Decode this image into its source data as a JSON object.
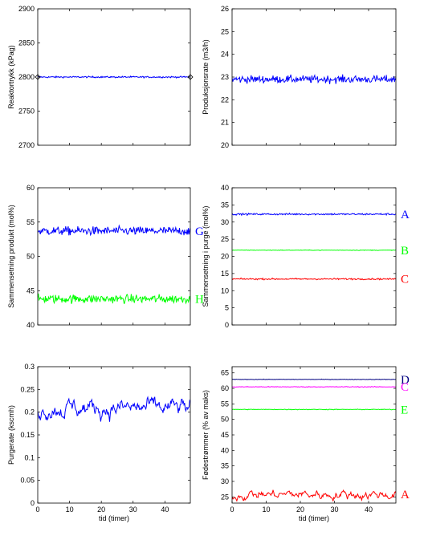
{
  "colors": {
    "blue": "#0000ff",
    "green": "#00ff00",
    "red": "#ff0000",
    "magenta": "#ff00ff",
    "navy": "#000080",
    "black": "#000000"
  },
  "chart_data": [
    {
      "type": "line",
      "title": "",
      "xlabel": "",
      "ylabel": "Reaktortrykk (kPag)",
      "xlim": [
        0,
        48
      ],
      "ylim": [
        2700,
        2900
      ],
      "xticks": [
        0,
        10,
        20,
        30,
        40
      ],
      "yticks": [
        2700,
        2750,
        2800,
        2850,
        2900
      ],
      "show_xtick_labels": false,
      "grid": false,
      "legend": "none",
      "series": [
        {
          "label": "",
          "color": "#0000ff",
          "base": 2800,
          "noise": 0.8,
          "kind": "white",
          "markers_at_ends": true
        }
      ]
    },
    {
      "type": "line",
      "title": "",
      "xlabel": "",
      "ylabel": "Produksjonsrate (m3/h)",
      "xlim": [
        0,
        48
      ],
      "ylim": [
        20,
        26
      ],
      "xticks": [
        0,
        10,
        20,
        30,
        40
      ],
      "yticks": [
        20,
        21,
        22,
        23,
        24,
        25,
        26
      ],
      "show_xtick_labels": false,
      "grid": false,
      "legend": "none",
      "series": [
        {
          "label": "",
          "color": "#0000ff",
          "base": 22.9,
          "noise": 0.12,
          "kind": "white"
        }
      ]
    },
    {
      "type": "line",
      "title": "",
      "xlabel": "",
      "ylabel": "Sammensetning produkt (mol%)",
      "xlim": [
        0,
        48
      ],
      "ylim": [
        40,
        60
      ],
      "xticks": [
        0,
        10,
        20,
        30,
        40
      ],
      "yticks": [
        40,
        45,
        50,
        55,
        60
      ],
      "show_xtick_labels": false,
      "grid": false,
      "legend": "none",
      "series": [
        {
          "label": "G",
          "color": "#0000ff",
          "base": 53.7,
          "noise": 0.45,
          "kind": "white"
        },
        {
          "label": "H",
          "color": "#00ff00",
          "base": 43.8,
          "noise": 0.45,
          "kind": "white"
        }
      ]
    },
    {
      "type": "line",
      "title": "",
      "xlabel": "",
      "ylabel": "Sammensetning i purge (mol%)",
      "xlim": [
        0,
        48
      ],
      "ylim": [
        0,
        40
      ],
      "xticks": [
        0,
        10,
        20,
        30,
        40
      ],
      "yticks": [
        0,
        5,
        10,
        15,
        20,
        25,
        30,
        35,
        40
      ],
      "show_xtick_labels": false,
      "grid": false,
      "legend": "none",
      "series": [
        {
          "label": "A",
          "color": "#0000ff",
          "base": 32.3,
          "noise": 0.18,
          "kind": "white"
        },
        {
          "label": "B",
          "color": "#00ff00",
          "base": 21.8,
          "noise": 0.06,
          "kind": "white"
        },
        {
          "label": "C",
          "color": "#ff0000",
          "base": 13.4,
          "noise": 0.15,
          "kind": "white"
        }
      ]
    },
    {
      "type": "line",
      "title": "",
      "xlabel": "tid (timer)",
      "ylabel": "Purgerate (kscmh)",
      "xlim": [
        0,
        48
      ],
      "ylim": [
        0,
        0.3
      ],
      "xticks": [
        0,
        10,
        20,
        30,
        40
      ],
      "yticks": [
        0,
        0.05,
        0.1,
        0.15,
        0.2,
        0.25,
        0.3
      ],
      "show_xtick_labels": true,
      "grid": false,
      "legend": "none",
      "series": [
        {
          "label": "",
          "color": "#0000ff",
          "base": 0.209,
          "noise": 0.008,
          "kind": "smooth"
        }
      ]
    },
    {
      "type": "line",
      "title": "",
      "xlabel": "tid (timer)",
      "ylabel": "Fødestrømmer (% av maks)",
      "xlim": [
        0,
        48
      ],
      "ylim": [
        23,
        67
      ],
      "xticks": [
        0,
        10,
        20,
        30,
        40
      ],
      "yticks": [
        25,
        30,
        35,
        40,
        45,
        50,
        55,
        60,
        65
      ],
      "show_xtick_labels": true,
      "grid": false,
      "legend": "none",
      "series": [
        {
          "label": "D",
          "color": "#000080",
          "base": 62.9,
          "noise": 0.06,
          "kind": "white"
        },
        {
          "label": "C",
          "color": "#ff00ff",
          "base": 60.5,
          "noise": 0.08,
          "kind": "white"
        },
        {
          "label": "E",
          "color": "#00ff00",
          "base": 53.2,
          "noise": 0.08,
          "kind": "white"
        },
        {
          "label": "A",
          "color": "#ff0000",
          "base": 25.8,
          "noise": 0.6,
          "kind": "smooth"
        }
      ]
    }
  ]
}
